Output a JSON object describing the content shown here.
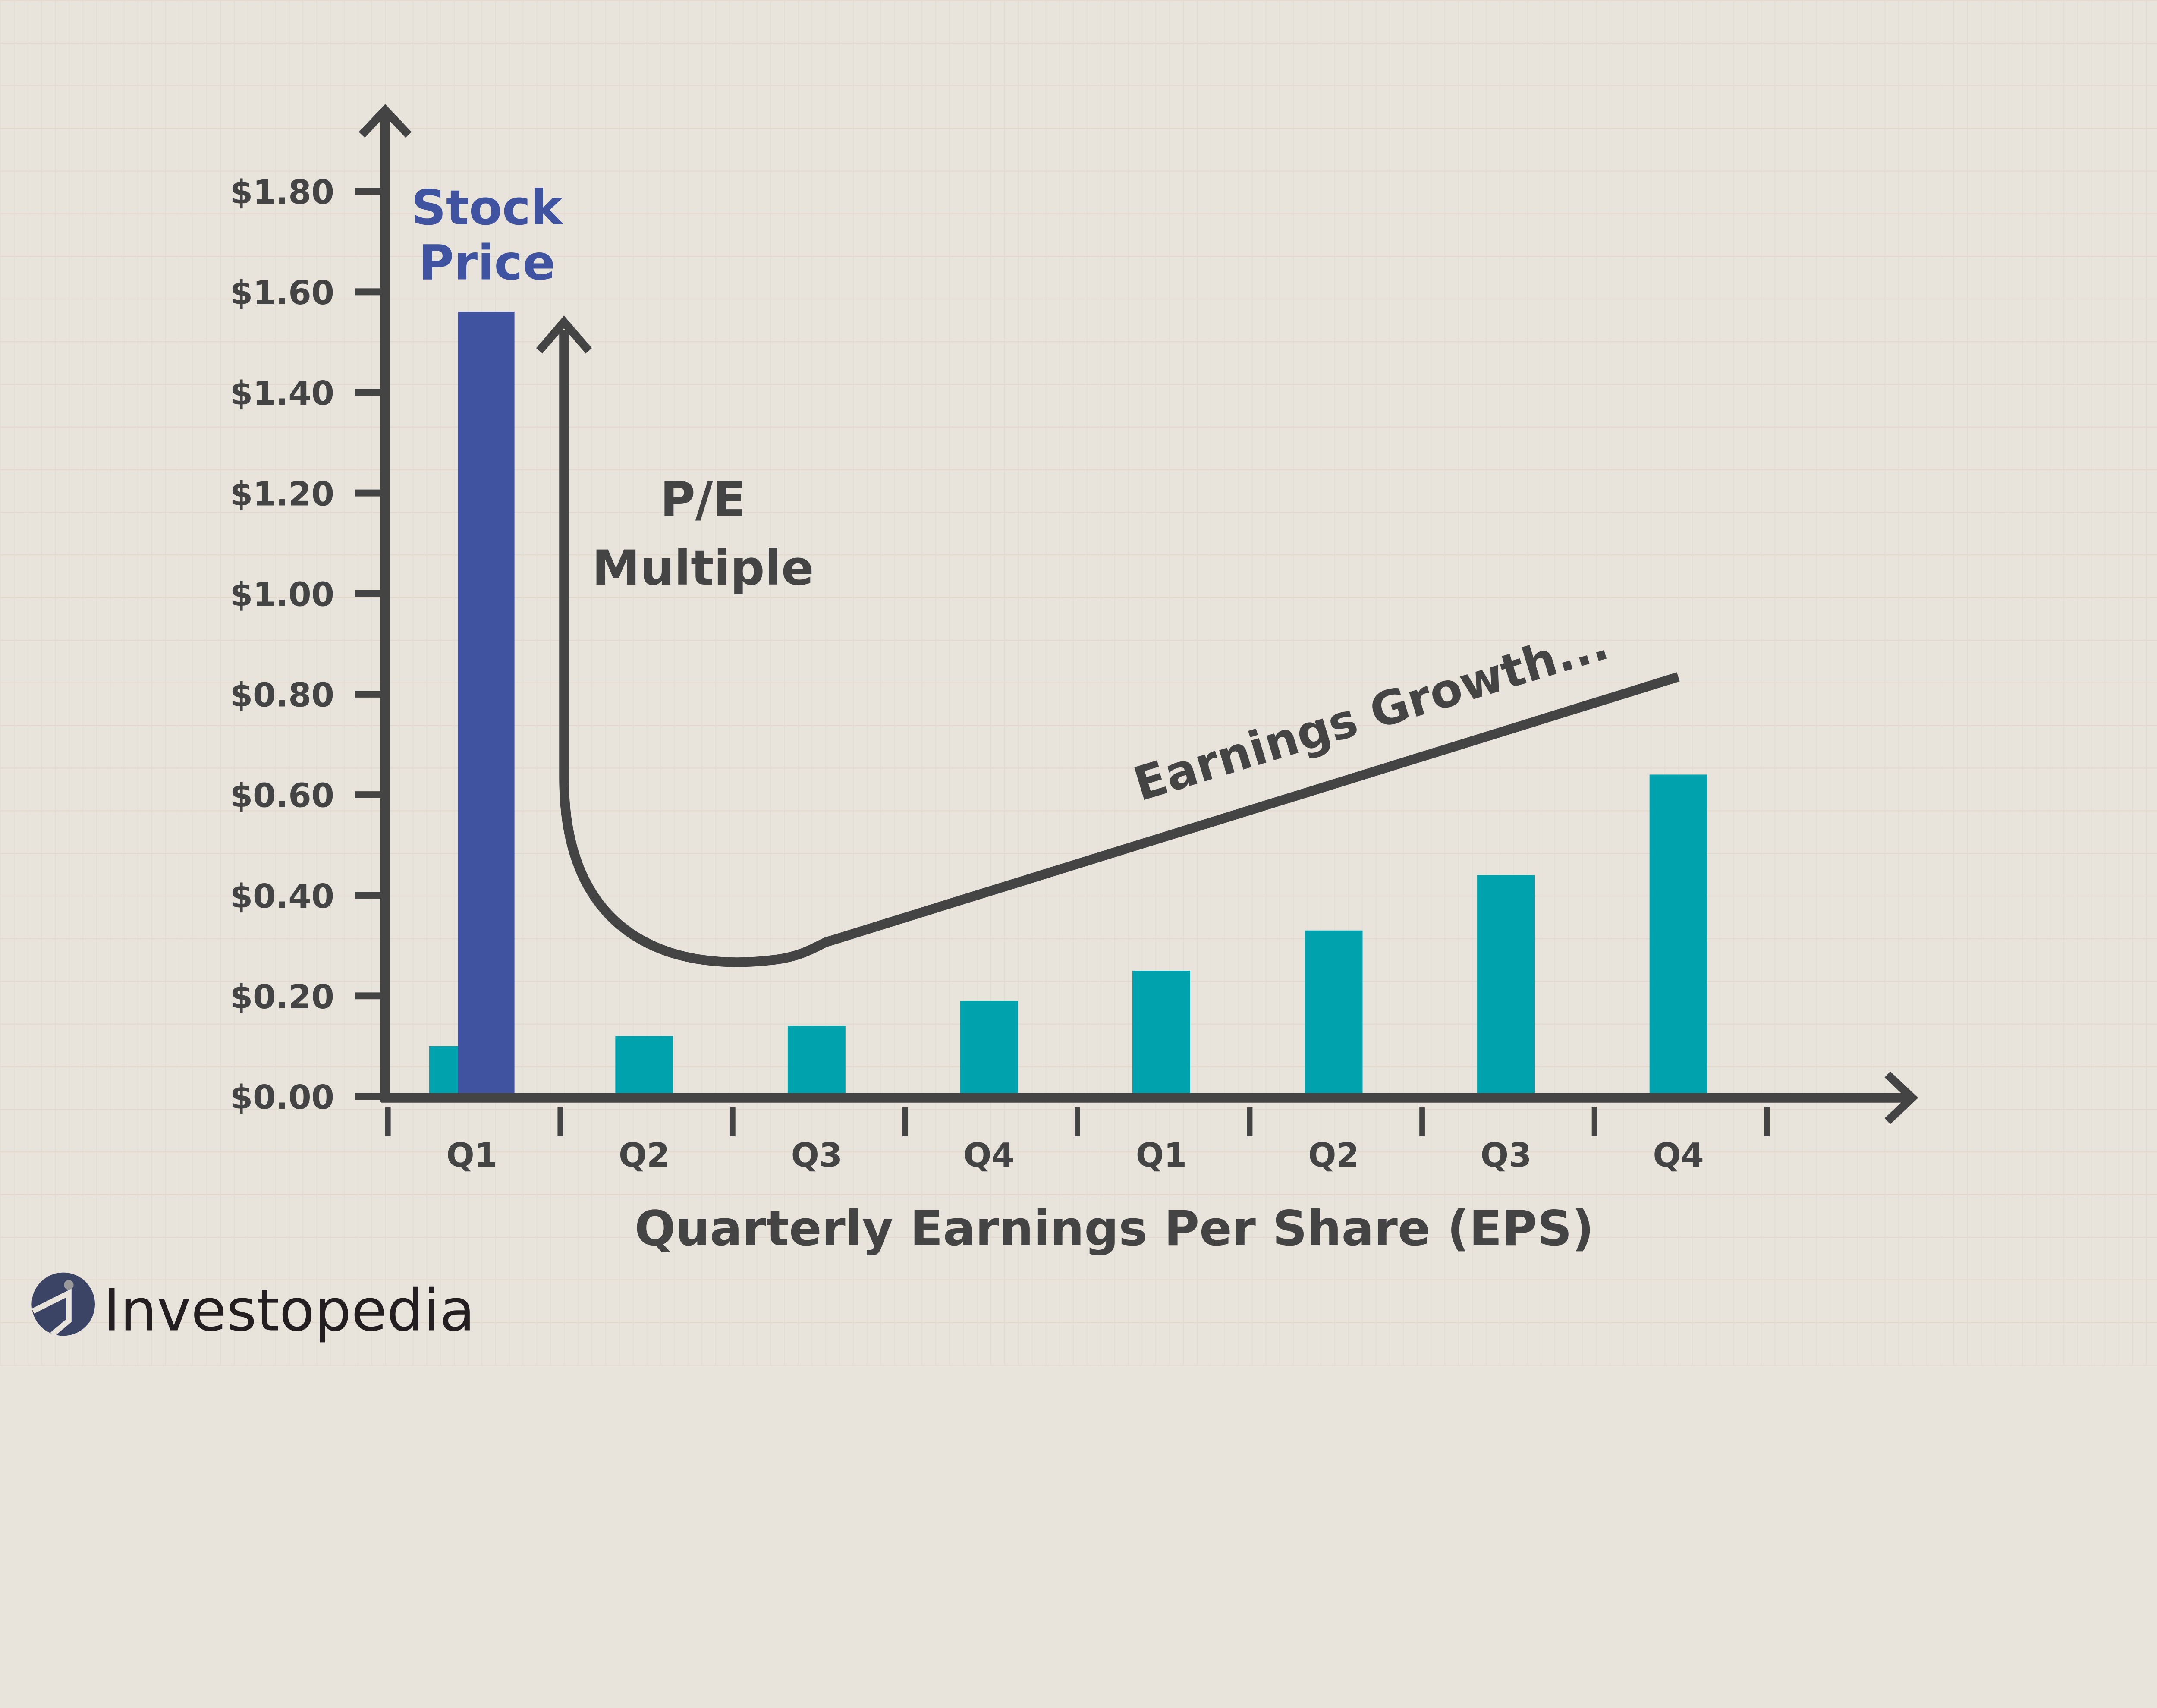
{
  "chart_data": {
    "type": "bar",
    "xlabel": "Quarterly Earnings Per Share (EPS)",
    "ylabel": "",
    "categories": [
      "Q1",
      "Q2",
      "Q3",
      "Q4",
      "Q1",
      "Q2",
      "Q3",
      "Q4"
    ],
    "series": [
      {
        "values": [
          0.1,
          0.12,
          0.14,
          0.19,
          0.25,
          0.33,
          0.44,
          0.64
        ]
      }
    ],
    "highlight_bar": {
      "label": "Stock Price",
      "category_index": 0,
      "value": 1.56
    },
    "yticks": [
      "$0.00",
      "$0.20",
      "$0.40",
      "$0.60",
      "$0.80",
      "$1.00",
      "$1.20",
      "$1.40",
      "$1.60",
      "$1.80"
    ],
    "ytick_values": [
      0,
      0.2,
      0.4,
      0.6,
      0.8,
      1.0,
      1.2,
      1.4,
      1.6,
      1.8
    ],
    "ylim": [
      0,
      1.9
    ],
    "annotations": {
      "stock_price_line1": "Stock",
      "stock_price_line2": "Price",
      "pe_line1": "P/E",
      "pe_line2": "Multiple",
      "earnings_growth": "Earnings Growth..."
    },
    "grid": true,
    "colors": {
      "eps": "#00a3ad",
      "stock_price": "#4053a1",
      "axis": "#444444",
      "background": "#e8e4dc"
    }
  },
  "brand": {
    "logo_text": "Investopedia"
  }
}
